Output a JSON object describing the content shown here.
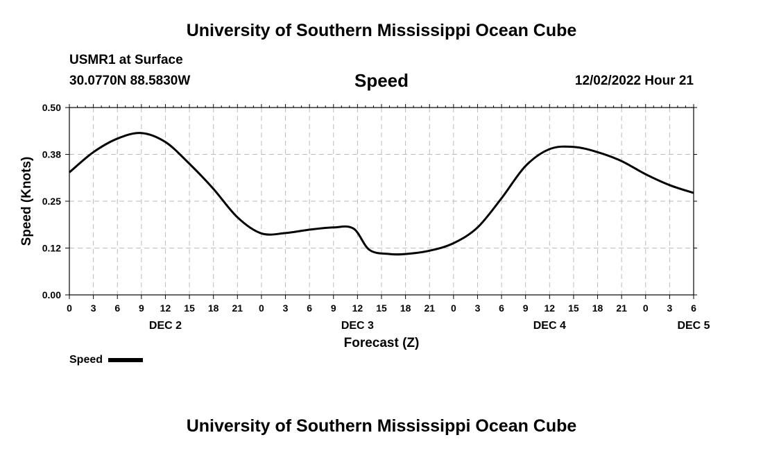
{
  "header": {
    "title": "University of Southern Mississippi Ocean Cube",
    "station": "USMR1 at Surface",
    "coords": "30.0770N  88.5830W",
    "variable": "Speed",
    "datetime": "12/02/2022 Hour 21"
  },
  "footer": {
    "title": "University of Southern Mississippi Ocean Cube"
  },
  "legend": {
    "label": "Speed"
  },
  "chart_data": {
    "type": "line",
    "title": "Speed",
    "xlabel": "Forecast (Z)",
    "ylabel": "Speed (Knots)",
    "ylim": [
      0.0,
      0.5
    ],
    "xlim": [
      0,
      78
    ],
    "x_unit": "hours since DEC 2 00Z",
    "yticks": [
      "0.00",
      "0.12",
      "0.25",
      "0.38",
      "0.50"
    ],
    "ytick_values": [
      0.0,
      0.125,
      0.25,
      0.375,
      0.5
    ],
    "xtick_labels": [
      "0",
      "3",
      "6",
      "9",
      "12",
      "15",
      "18",
      "21",
      "0",
      "3",
      "6",
      "9",
      "12",
      "15",
      "18",
      "21",
      "0",
      "3",
      "6",
      "9",
      "12",
      "15",
      "18",
      "21",
      "0",
      "3",
      "6"
    ],
    "day_labels": [
      {
        "text": "DEC 2",
        "hour": 12
      },
      {
        "text": "DEC 3",
        "hour": 36
      },
      {
        "text": "DEC 4",
        "hour": 60
      },
      {
        "text": "DEC 5",
        "hour": 78
      }
    ],
    "grid": true,
    "legend_position": "bottom-left",
    "series": [
      {
        "name": "Speed",
        "color": "#000000",
        "x": [
          0,
          3,
          6,
          9,
          12,
          15,
          18,
          21,
          24,
          27,
          30,
          33,
          35.5,
          37.5,
          40,
          42,
          45,
          48,
          51,
          54,
          57,
          60,
          63,
          66,
          69,
          72,
          75,
          78
        ],
        "values": [
          0.327,
          0.381,
          0.417,
          0.432,
          0.408,
          0.35,
          0.283,
          0.207,
          0.164,
          0.165,
          0.174,
          0.18,
          0.177,
          0.12,
          0.109,
          0.109,
          0.118,
          0.138,
          0.18,
          0.258,
          0.344,
          0.389,
          0.395,
          0.381,
          0.357,
          0.322,
          0.293,
          0.272
        ]
      }
    ]
  }
}
